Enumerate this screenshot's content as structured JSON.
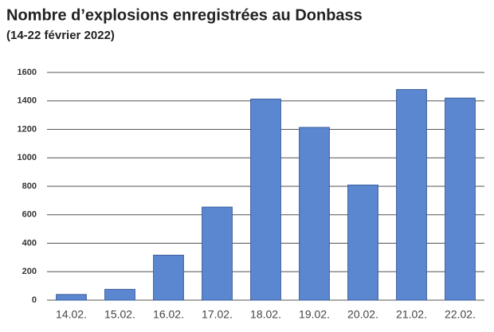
{
  "chart_data": {
    "type": "bar",
    "title": "Nombre d’explosions enregistrées au Donbass",
    "subtitle": "(14-22 février 2022)",
    "categories": [
      "14.02.",
      "15.02.",
      "16.02.",
      "17.02.",
      "18.02.",
      "19.02.",
      "20.02.",
      "21.02.",
      "22.02."
    ],
    "values": [
      40,
      76,
      316,
      654,
      1413,
      1214,
      809,
      1480,
      1420
    ],
    "color": "#5b87d0",
    "ylim": [
      0,
      1600
    ],
    "yticks": [
      0,
      200,
      400,
      600,
      800,
      1000,
      1200,
      1400,
      1600
    ],
    "grid": true
  }
}
